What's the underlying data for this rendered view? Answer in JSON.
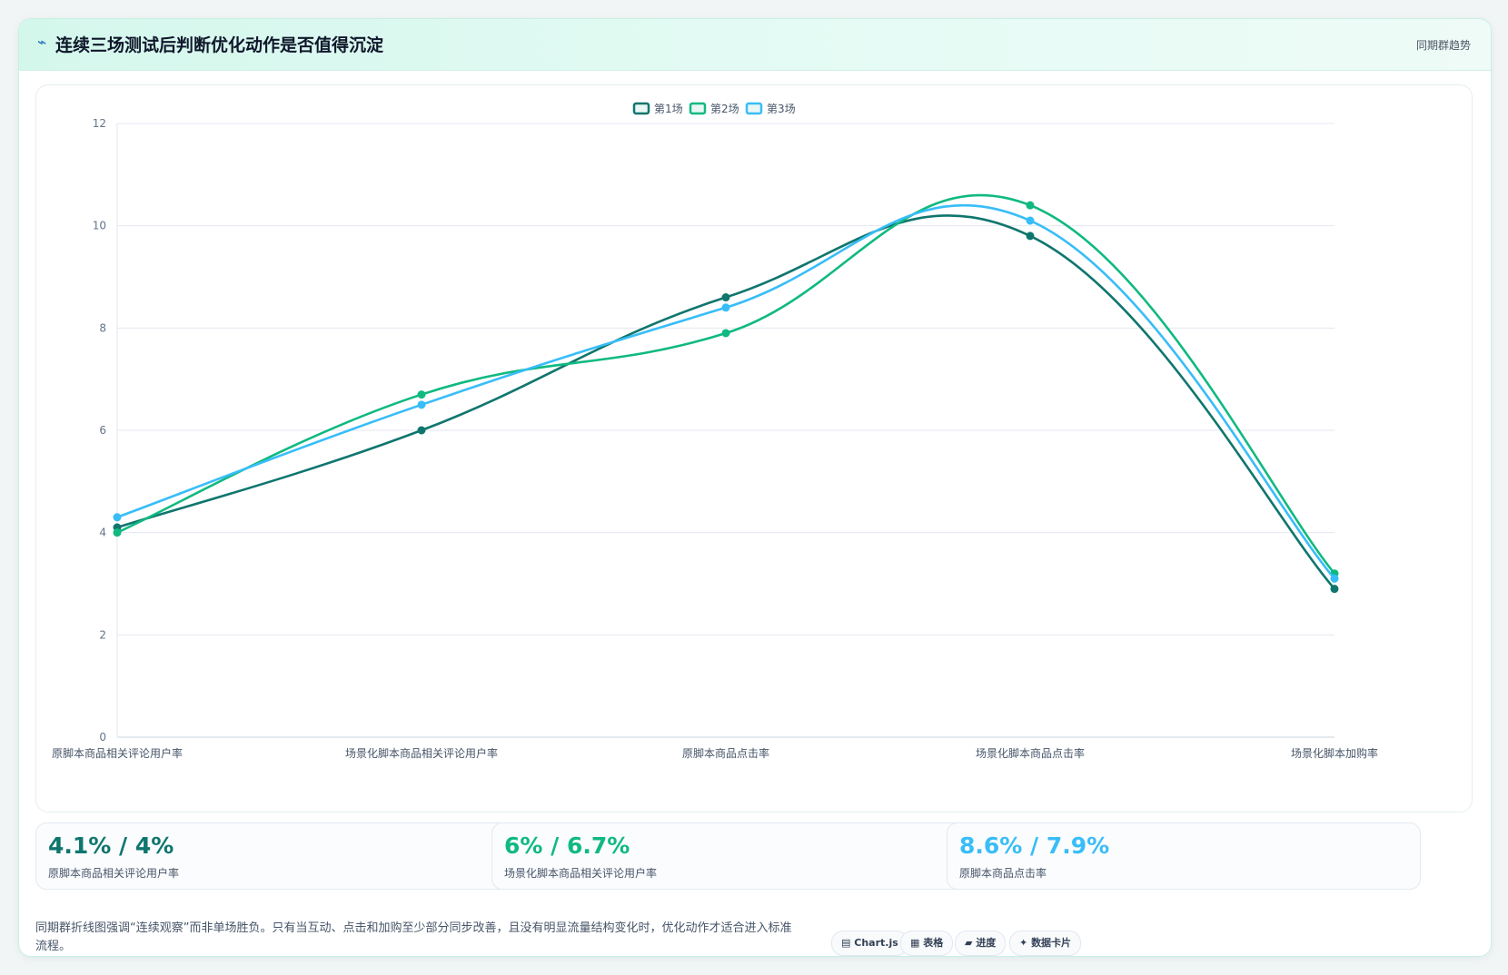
{
  "header": {
    "icon": "trend-line-icon",
    "title": "连续三场测试后判断优化动作是否值得沉淀",
    "tag": "同期群趋势"
  },
  "chart_data": {
    "type": "line",
    "categories": [
      "原脚本商品相关评论用户率",
      "场景化脚本商品相关评论用户率",
      "原脚本商品点击率",
      "场景化脚本商品点击率",
      "场景化脚本加购率"
    ],
    "series": [
      {
        "name": "第1场",
        "color": "#0f766e",
        "values": [
          4.1,
          6.0,
          8.6,
          9.8,
          2.9
        ]
      },
      {
        "name": "第2场",
        "color": "#10b981",
        "values": [
          4.0,
          6.7,
          7.9,
          10.4,
          3.2
        ]
      },
      {
        "name": "第3场",
        "color": "#38bdf8",
        "values": [
          4.3,
          6.5,
          8.4,
          10.1,
          3.1
        ]
      }
    ],
    "ylim": [
      0,
      12
    ],
    "yticks": [
      0,
      2,
      4,
      6,
      8,
      10,
      12
    ],
    "grid": true,
    "legend": "top-center",
    "smooth": true
  },
  "stats": [
    {
      "value": "4.1% / 4%",
      "label": "原脚本商品相关评论用户率",
      "color": "#0f766e"
    },
    {
      "value": "6% / 6.7%",
      "label": "场景化脚本商品相关评论用户率",
      "color": "#10b981"
    },
    {
      "value": "8.6% / 7.9%",
      "label": "原脚本商品点击率",
      "color": "#38bdf8"
    }
  ],
  "note": "同期群折线图强调“连续观察”而非单场胜负。只有当互动、点击和加购至少部分同步改善，且没有明显流量结构变化时，优化动作才适合进入标准流程。",
  "chips": [
    {
      "icon": "chart-icon",
      "glyph": "▤",
      "label": "Chart.js"
    },
    {
      "icon": "table-icon",
      "glyph": "▦",
      "label": "表格"
    },
    {
      "icon": "progress-icon",
      "glyph": "▰",
      "label": "进度"
    },
    {
      "icon": "sparkle-icon",
      "glyph": "✦",
      "label": "数据卡片"
    }
  ]
}
